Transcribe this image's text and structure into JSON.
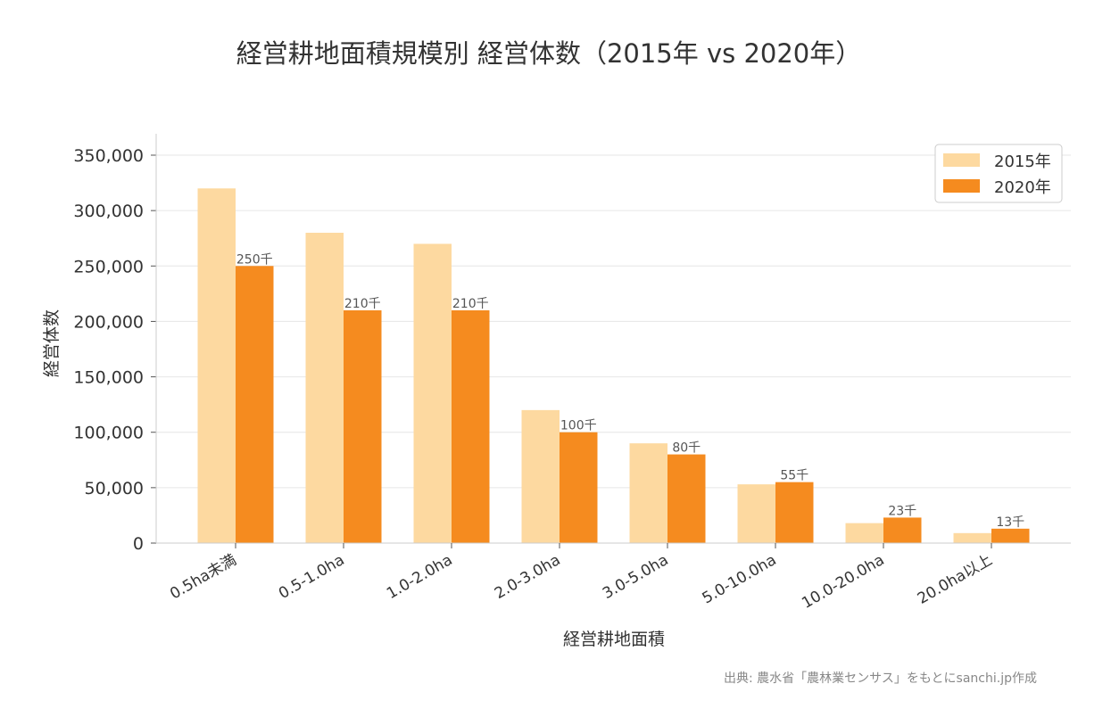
{
  "chart_data": {
    "type": "bar",
    "title": "経営耕地面積規模別 経営体数（2015年 vs 2020年）",
    "xlabel": "経営耕地面積",
    "ylabel": "経営体数",
    "ylim": [
      0,
      370000
    ],
    "yticks": [
      0,
      50000,
      100000,
      150000,
      200000,
      250000,
      300000,
      350000
    ],
    "ytick_labels": [
      "0",
      "50,000",
      "100,000",
      "150,000",
      "200,000",
      "250,000",
      "300,000",
      "350,000"
    ],
    "categories": [
      "0.5ha未満",
      "0.5-1.0ha",
      "1.0-2.0ha",
      "2.0-3.0ha",
      "3.0-5.0ha",
      "5.0-10.0ha",
      "10.0-20.0ha",
      "20.0ha以上"
    ],
    "series": [
      {
        "name": "2015年",
        "color": "#fdd9a0",
        "values": [
          320000,
          280000,
          270000,
          120000,
          90000,
          53000,
          18000,
          9000
        ]
      },
      {
        "name": "2020年",
        "color": "#f58b1f",
        "values": [
          250000,
          210000,
          210000,
          100000,
          80000,
          55000,
          23000,
          13000
        ],
        "data_labels": [
          "250千",
          "210千",
          "210千",
          "100千",
          "80千",
          "55千",
          "23千",
          "13千"
        ]
      }
    ],
    "grid": true,
    "legend": "top-right",
    "source": "出典: 農水省「農林業センサス」をもとにsanchi.jp作成"
  }
}
